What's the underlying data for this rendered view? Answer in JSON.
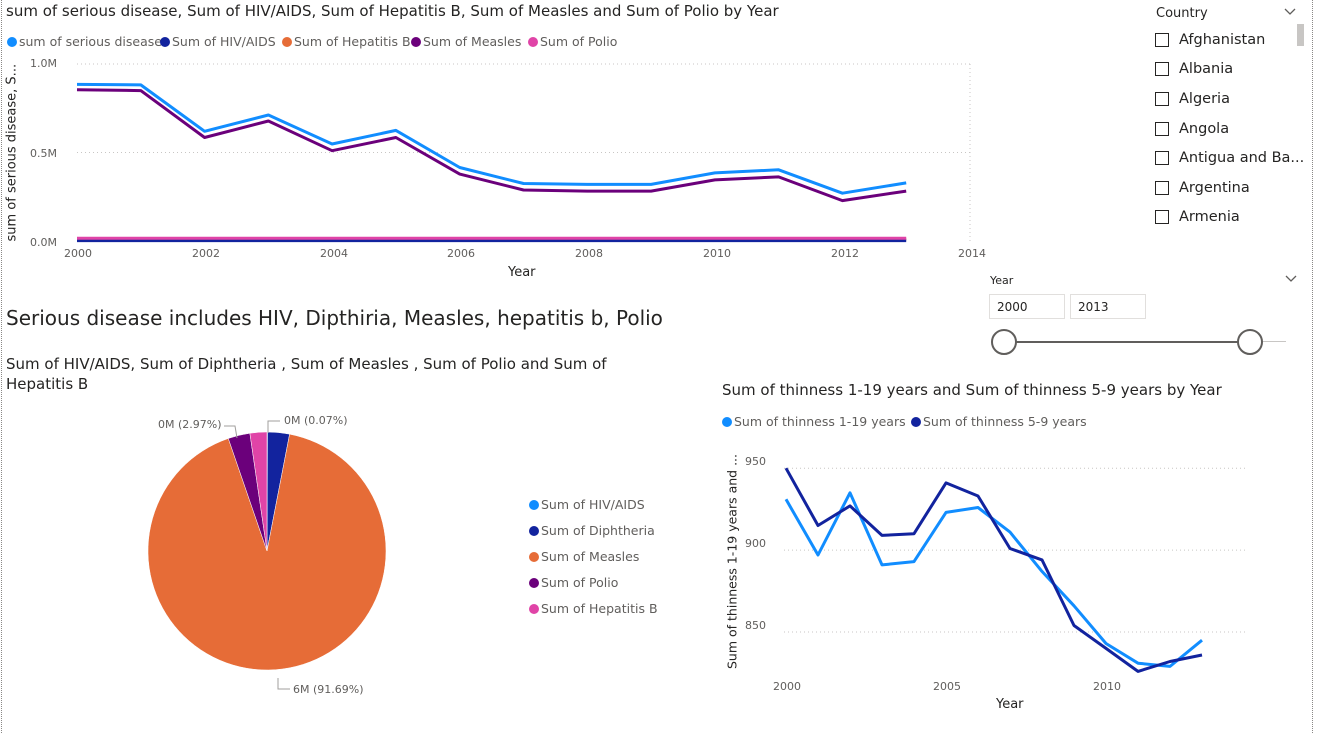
{
  "top_chart": {
    "title": "sum of serious disease, Sum of HIV/AIDS, Sum of Hepatitis B, Sum of Measles and Sum of Polio by Year",
    "legend": [
      {
        "label": "sum of serious disease",
        "color": "#118DFF"
      },
      {
        "label": "Sum of HIV/AIDS",
        "color": "#12239E"
      },
      {
        "label": "Sum of Hepatitis B",
        "color": "#E66C37"
      },
      {
        "label": "Sum of Measles",
        "color": "#6B007B"
      },
      {
        "label": "Sum of Polio",
        "color": "#E044A7"
      }
    ],
    "y_axis_title": "sum of serious disease, S...",
    "x_axis_title": "Year",
    "y_ticks": [
      "1.0M",
      "0.5M",
      "0.0M"
    ],
    "x_ticks": [
      "2000",
      "2002",
      "2004",
      "2006",
      "2008",
      "2010",
      "2012",
      "2014"
    ]
  },
  "note": {
    "text": "Serious disease includes HIV, Dipthiria, Measles, hepatitis b, Polio"
  },
  "pie_chart": {
    "title": "Sum of HIV/AIDS, Sum of Diphtheria , Sum of Measles , Sum of Polio and Sum of Hepatitis B",
    "legend": [
      {
        "label": "Sum of HIV/AIDS",
        "color": "#118DFF"
      },
      {
        "label": "Sum of Diphtheria",
        "color": "#12239E"
      },
      {
        "label": "Sum of Measles",
        "color": "#E66C37"
      },
      {
        "label": "Sum of Polio",
        "color": "#6B007B"
      },
      {
        "label": "Sum of Hepatitis B",
        "color": "#E044A7"
      }
    ],
    "labels": {
      "left_small": "0M (2.97%)",
      "right_small": "0M (0.07%)",
      "big": "6M (91.69%)"
    }
  },
  "thinness_chart": {
    "title": "Sum of thinness 1-19 years and Sum of thinness 5-9 years by Year",
    "legend": [
      {
        "label": "Sum of  thinness  1-19 years",
        "color": "#118DFF"
      },
      {
        "label": "Sum of  thinness 5-9 years",
        "color": "#12239E"
      }
    ],
    "y_axis_title": "Sum of thinness 1-19 years and ...",
    "x_axis_title": "Year",
    "y_ticks": [
      "950",
      "900",
      "850"
    ],
    "x_ticks": [
      "2000",
      "2005",
      "2010"
    ]
  },
  "country_slicer": {
    "header": "Country",
    "items": [
      "Afghanistan",
      "Albania",
      "Algeria",
      "Angola",
      "Antigua and Ba...",
      "Argentina",
      "Armenia"
    ]
  },
  "year_slicer": {
    "header": "Year",
    "start": "2000",
    "end": "2013"
  },
  "chart_data": [
    {
      "type": "line",
      "title": "sum of serious disease, Sum of HIV/AIDS, Sum of Hepatitis B, Sum of Measles and Sum of Polio by Year",
      "xlabel": "Year",
      "ylabel": "sum of serious disease, S...",
      "x": [
        2000,
        2001,
        2002,
        2003,
        2004,
        2005,
        2006,
        2007,
        2008,
        2009,
        2010,
        2011,
        2012,
        2013
      ],
      "xlim": [
        2000,
        2014
      ],
      "ylim": [
        0,
        1000000
      ],
      "series": [
        {
          "name": "sum of serious disease",
          "color": "#118DFF",
          "values": [
            885000,
            882000,
            620000,
            712000,
            548000,
            625000,
            415000,
            325000,
            320000,
            320000,
            385000,
            402000,
            270000,
            328000
          ]
        },
        {
          "name": "Sum of HIV/AIDS",
          "color": "#12239E",
          "values": [
            2000,
            2000,
            2000,
            2000,
            2000,
            2000,
            2000,
            2000,
            2000,
            2000,
            2000,
            2000,
            2000,
            2000
          ]
        },
        {
          "name": "Sum of Hepatitis B",
          "color": "#E66C37",
          "values": [
            10000,
            10000,
            10000,
            10000,
            10000,
            10000,
            10000,
            10000,
            10000,
            10000,
            10000,
            10000,
            10000,
            10000
          ]
        },
        {
          "name": "Sum of Measles",
          "color": "#6B007B",
          "values": [
            855000,
            850000,
            585000,
            678000,
            510000,
            585000,
            378000,
            288000,
            282000,
            282000,
            345000,
            362000,
            228000,
            282000
          ]
        },
        {
          "name": "Sum of Polio",
          "color": "#E044A7",
          "values": [
            15000,
            15000,
            15000,
            15000,
            15000,
            15000,
            15000,
            15000,
            15000,
            15000,
            15000,
            15000,
            15000,
            15000
          ]
        }
      ]
    },
    {
      "type": "pie",
      "title": "Sum of HIV/AIDS, Sum of Diphtheria , Sum of Measles , Sum of Polio and Sum of Hepatitis B",
      "categories": [
        "Sum of HIV/AIDS",
        "Sum of Diphtheria",
        "Sum of Measles",
        "Sum of Polio",
        "Sum of Hepatitis B"
      ],
      "colors": [
        "#118DFF",
        "#12239E",
        "#E66C37",
        "#6B007B",
        "#E044A7"
      ],
      "values": [
        0.07,
        2.97,
        91.69,
        2.97,
        2.3
      ],
      "value_unit": "percent"
    },
    {
      "type": "line",
      "title": "Sum of thinness 1-19 years and Sum of thinness 5-9 years by Year",
      "xlabel": "Year",
      "ylabel": "Sum of thinness 1-19 years and ...",
      "x": [
        2000,
        2001,
        2002,
        2003,
        2004,
        2005,
        2006,
        2007,
        2008,
        2009,
        2010,
        2011,
        2012,
        2013
      ],
      "xlim": [
        2000,
        2014
      ],
      "ylim": [
        825,
        955
      ],
      "series": [
        {
          "name": "Sum of  thinness  1-19 years",
          "color": "#118DFF",
          "values": [
            931,
            897,
            935,
            891,
            893,
            923,
            926,
            911,
            887,
            866,
            843,
            831,
            829,
            845
          ]
        },
        {
          "name": "Sum of  thinness 5-9 years",
          "color": "#12239E",
          "values": [
            950,
            915,
            927,
            909,
            910,
            941,
            933,
            901,
            894,
            854,
            840,
            826,
            832,
            836
          ]
        }
      ]
    }
  ]
}
